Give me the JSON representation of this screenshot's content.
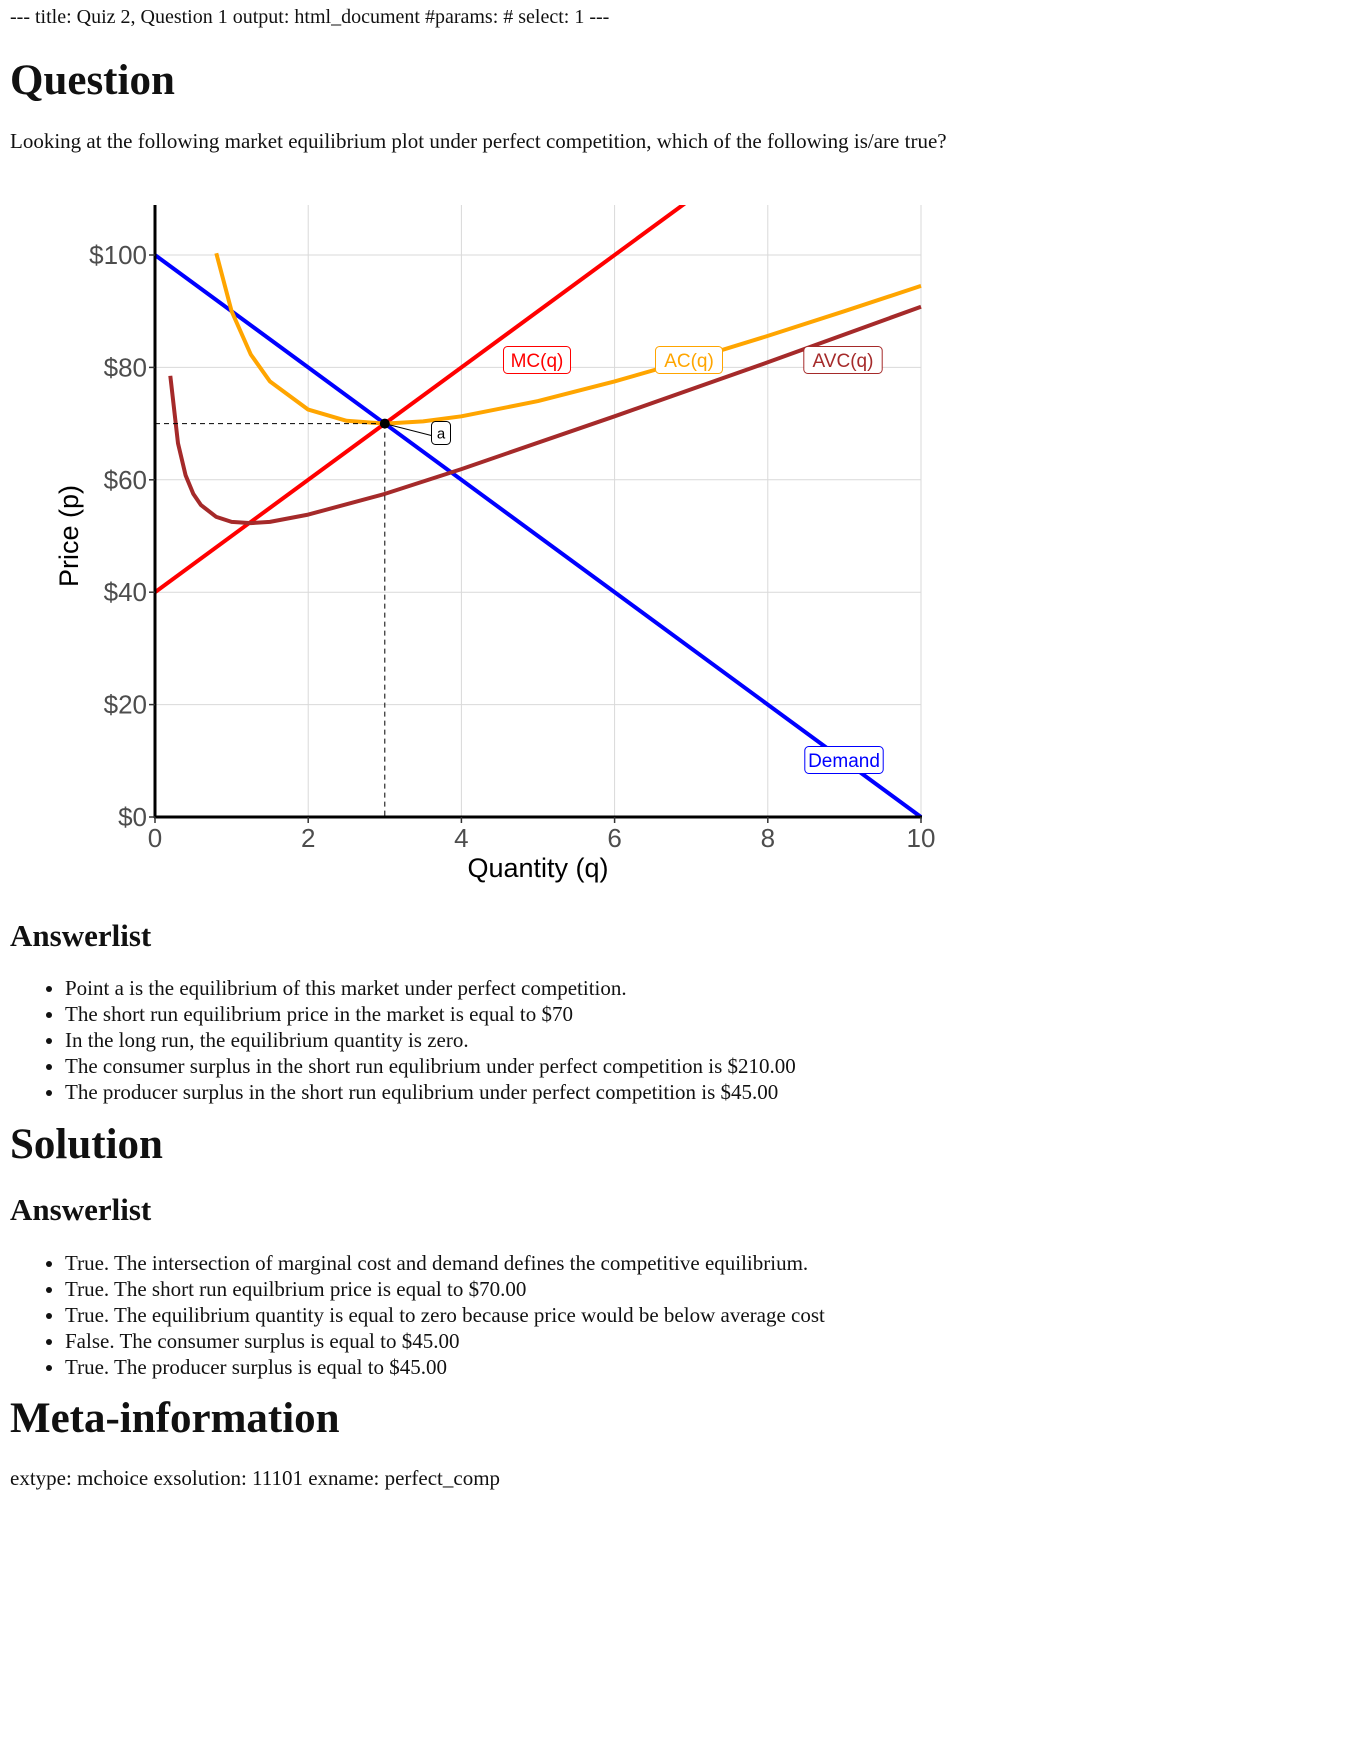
{
  "front_matter": "--- title: Quiz 2, Question 1 output: html_document #params: # select: 1 ---",
  "question": {
    "heading": "Question",
    "text": "Looking at the following market equilibrium plot under perfect competition, which of the following is/are true?",
    "answerlist_heading": "Answerlist",
    "answers": [
      "Point a is the equilibrium of this market under perfect competition.",
      "The short run equilibrium price in the market is equal to $70",
      "In the long run, the equilibrium quantity is zero.",
      "The consumer surplus in the short run equlibrium under perfect competition is $210.00",
      "The producer surplus in the short run equlibrium under perfect competition is $45.00"
    ]
  },
  "solution": {
    "heading": "Solution",
    "answerlist_heading": "Answerlist",
    "answers": [
      "True. The intersection of marginal cost and demand defines the competitive equilibrium.",
      "True. The short run equilbrium price is equal to $70.00",
      "True. The equilibrium quantity is equal to zero because price would be below average cost",
      "False. The consumer surplus is equal to $45.00",
      "True. The producer surplus is equal to $45.00"
    ]
  },
  "meta": {
    "heading": "Meta-information",
    "text": "extype: mchoice exsolution: 11101 exname: perfect_comp"
  },
  "chart_data": {
    "type": "line",
    "xlabel": "Quantity (q)",
    "ylabel": "Price (p)",
    "xlim": [
      0,
      10
    ],
    "ylim": [
      0,
      100
    ],
    "x_ticks": [
      0,
      2,
      4,
      6,
      8,
      10
    ],
    "y_ticks": [
      0,
      20,
      40,
      60,
      80,
      100
    ],
    "y_tick_labels": [
      "$0",
      "$20",
      "$40",
      "$60",
      "$80",
      "$100"
    ],
    "grid": true,
    "series": [
      {
        "name": "MC(q)",
        "color": "#ff0000",
        "function": "40 + 10q",
        "x": [
          0,
          7
        ],
        "y": [
          40,
          110
        ]
      },
      {
        "name": "Demand",
        "color": "#0000ff",
        "function": "100 - 10q",
        "x": [
          0,
          10
        ],
        "y": [
          100,
          0
        ]
      },
      {
        "name": "AC(q)",
        "color": "#ffa500",
        "function": "40 + 5q + 45/q",
        "x": [
          0.8,
          1.0,
          1.25,
          1.5,
          2.0,
          2.5,
          3.0,
          3.5,
          4.0,
          5.0,
          6.0,
          7.0,
          8.0,
          9.0,
          10.0
        ],
        "y": [
          100.3,
          90.0,
          82.3,
          77.5,
          72.5,
          70.5,
          70.0,
          70.4,
          71.3,
          74.0,
          77.5,
          81.4,
          85.6,
          90.0,
          94.5
        ]
      },
      {
        "name": "AVC(q)",
        "color": "#a52a2a",
        "function": "40 + 5q + 7.5/q",
        "x": [
          0.2,
          0.3,
          0.4,
          0.5,
          0.6,
          0.8,
          1.0,
          1.25,
          1.5,
          2.0,
          3.0,
          4.0,
          6.0,
          8.0,
          10.0
        ],
        "y": [
          78.5,
          66.5,
          60.8,
          57.5,
          55.5,
          53.4,
          52.5,
          52.3,
          52.5,
          53.8,
          57.5,
          61.9,
          71.3,
          80.9,
          90.8
        ]
      }
    ],
    "equilibrium": {
      "label": "a",
      "x": 3,
      "y": 70
    }
  }
}
